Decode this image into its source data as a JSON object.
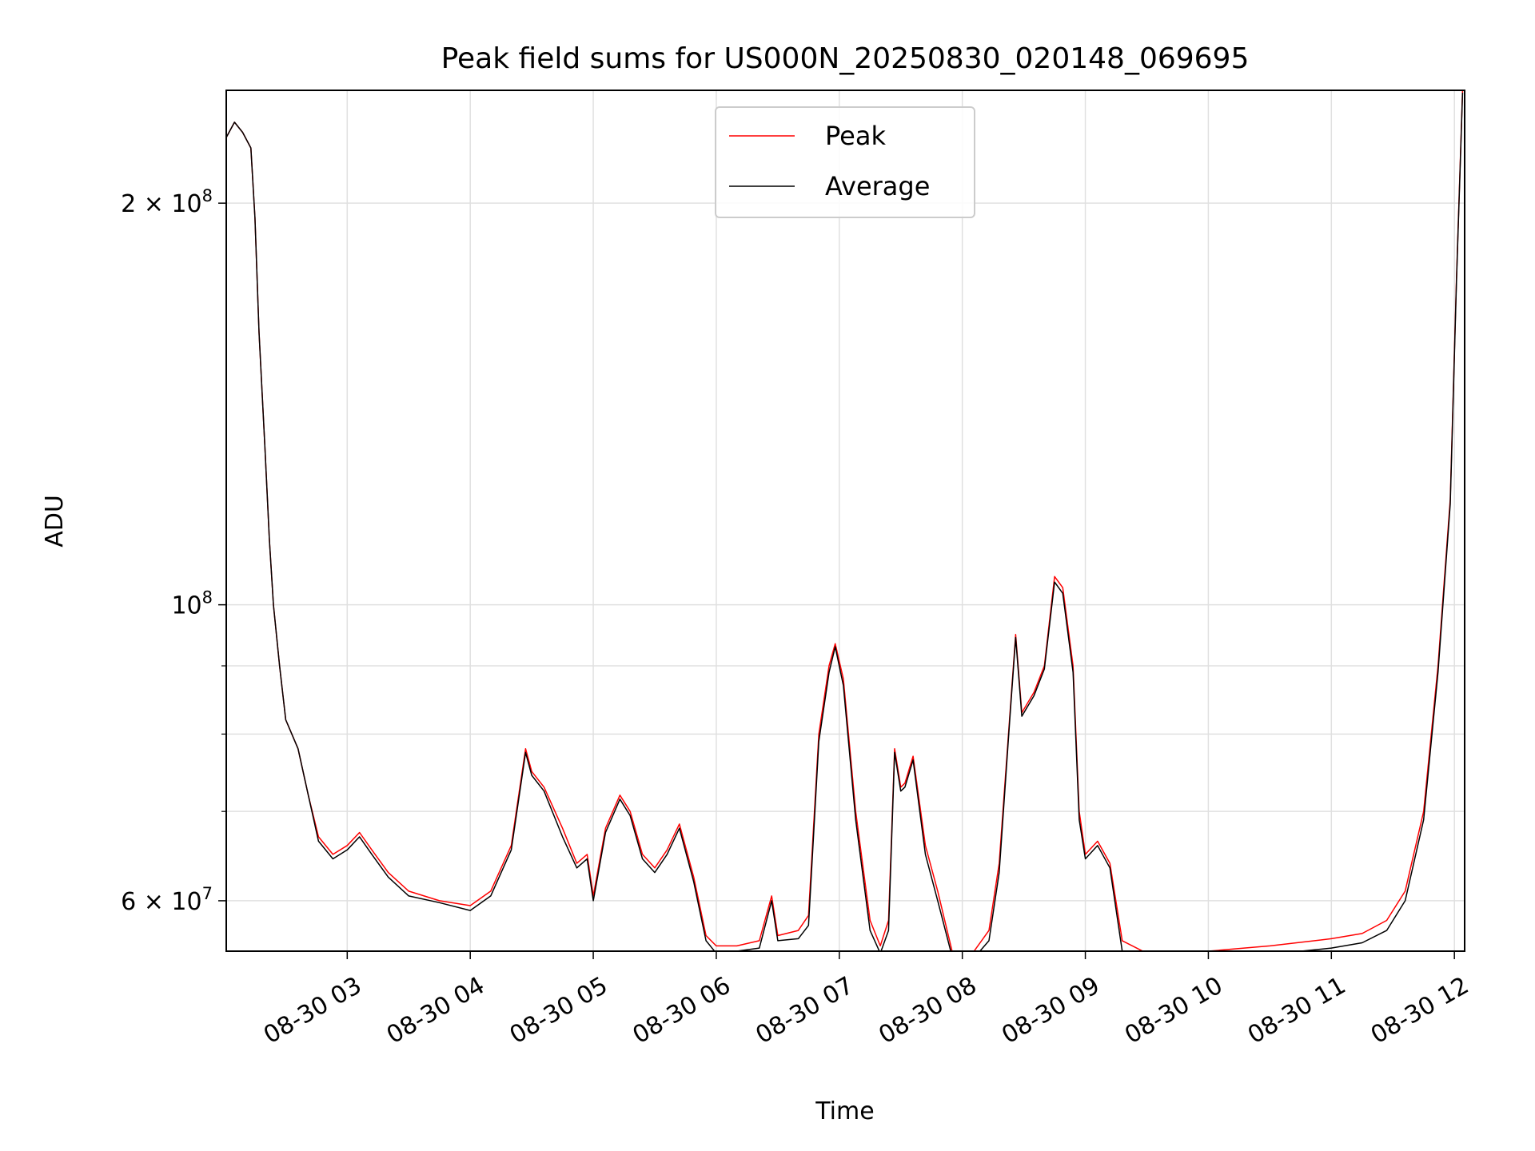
{
  "chart_data": {
    "type": "line",
    "title": "Peak field sums for US000N_20250830_020148_069695",
    "xlabel": "Time",
    "ylabel": "ADU",
    "yscale": "log",
    "grid": true,
    "legend_position": "top-center",
    "xlim": [
      "2025-08-30 02:01",
      "2025-08-30 12:05"
    ],
    "ylim": [
      55000000,
      243000000
    ],
    "x_ticks": [
      {
        "value": "2025-08-30 03:00",
        "label": "08-30 03"
      },
      {
        "value": "2025-08-30 04:00",
        "label": "08-30 04"
      },
      {
        "value": "2025-08-30 05:00",
        "label": "08-30 05"
      },
      {
        "value": "2025-08-30 06:00",
        "label": "08-30 06"
      },
      {
        "value": "2025-08-30 07:00",
        "label": "08-30 07"
      },
      {
        "value": "2025-08-30 08:00",
        "label": "08-30 08"
      },
      {
        "value": "2025-08-30 09:00",
        "label": "08-30 09"
      },
      {
        "value": "2025-08-30 10:00",
        "label": "08-30 10"
      },
      {
        "value": "2025-08-30 11:00",
        "label": "08-30 11"
      },
      {
        "value": "2025-08-30 12:00",
        "label": "08-30 12"
      }
    ],
    "y_ticks": [
      {
        "value": 60000000,
        "label": "6 × 10⁷",
        "base": "6 × 10",
        "exp": "7"
      },
      {
        "value": 100000000,
        "label": "10⁸",
        "base": "10",
        "exp": "8"
      },
      {
        "value": 200000000,
        "label": "2 × 10⁸",
        "base": "2 × 10",
        "exp": "8"
      }
    ],
    "y_minor_ticks": [
      70000000,
      80000000,
      90000000
    ],
    "series": [
      {
        "name": "Peak",
        "color": "#ff0000",
        "x": [
          "2025-08-30 02:01",
          "2025-08-30 02:05",
          "2025-08-30 02:09",
          "2025-08-30 02:13",
          "2025-08-30 02:15",
          "2025-08-30 02:17",
          "2025-08-30 02:20",
          "2025-08-30 02:22",
          "2025-08-30 02:24",
          "2025-08-30 02:27",
          "2025-08-30 02:30",
          "2025-08-30 02:36",
          "2025-08-30 02:41",
          "2025-08-30 02:46",
          "2025-08-30 02:53",
          "2025-08-30 03:00",
          "2025-08-30 03:06",
          "2025-08-30 03:12",
          "2025-08-30 03:20",
          "2025-08-30 03:30",
          "2025-08-30 03:45",
          "2025-08-30 04:00",
          "2025-08-30 04:10",
          "2025-08-30 04:20",
          "2025-08-30 04:27",
          "2025-08-30 04:30",
          "2025-08-30 04:36",
          "2025-08-30 04:45",
          "2025-08-30 04:52",
          "2025-08-30 04:57",
          "2025-08-30 05:00",
          "2025-08-30 05:06",
          "2025-08-30 05:13",
          "2025-08-30 05:18",
          "2025-08-30 05:24",
          "2025-08-30 05:30",
          "2025-08-30 05:36",
          "2025-08-30 05:42",
          "2025-08-30 05:49",
          "2025-08-30 05:55",
          "2025-08-30 06:00",
          "2025-08-30 06:10",
          "2025-08-30 06:21",
          "2025-08-30 06:27",
          "2025-08-30 06:30",
          "2025-08-30 06:40",
          "2025-08-30 06:45",
          "2025-08-30 06:50",
          "2025-08-30 06:55",
          "2025-08-30 06:58",
          "2025-08-30 07:02",
          "2025-08-30 07:08",
          "2025-08-30 07:15",
          "2025-08-30 07:20",
          "2025-08-30 07:24",
          "2025-08-30 07:27",
          "2025-08-30 07:30",
          "2025-08-30 07:32",
          "2025-08-30 07:36",
          "2025-08-30 07:42",
          "2025-08-30 07:48",
          "2025-08-30 07:55",
          "2025-08-30 08:05",
          "2025-08-30 08:13",
          "2025-08-30 08:18",
          "2025-08-30 08:23",
          "2025-08-30 08:26",
          "2025-08-30 08:29",
          "2025-08-30 08:35",
          "2025-08-30 08:40",
          "2025-08-30 08:45",
          "2025-08-30 08:49",
          "2025-08-30 08:54",
          "2025-08-30 08:57",
          "2025-08-30 09:00",
          "2025-08-30 09:06",
          "2025-08-30 09:12",
          "2025-08-30 09:18",
          "2025-08-30 09:30",
          "2025-08-30 10:00",
          "2025-08-30 10:30",
          "2025-08-30 11:00",
          "2025-08-30 11:15",
          "2025-08-30 11:27",
          "2025-08-30 11:36",
          "2025-08-30 11:45",
          "2025-08-30 11:52",
          "2025-08-30 11:58",
          "2025-08-30 12:01",
          "2025-08-30 12:04"
        ],
        "values": [
          224000000,
          230000000,
          226000000,
          220000000,
          195000000,
          160000000,
          130000000,
          112000000,
          100000000,
          90000000,
          82000000,
          78000000,
          72000000,
          67000000,
          65000000,
          66000000,
          67500000,
          65500000,
          63000000,
          61000000,
          60000000,
          59500000,
          61000000,
          66000000,
          78000000,
          75000000,
          73000000,
          68000000,
          64000000,
          65000000,
          60500000,
          68000000,
          72000000,
          70000000,
          65000000,
          63500000,
          65500000,
          68500000,
          62500000,
          56500000,
          55500000,
          55500000,
          56000000,
          60500000,
          56500000,
          57000000,
          58500000,
          80000000,
          90000000,
          93500000,
          88000000,
          70000000,
          58000000,
          55500000,
          58000000,
          78000000,
          73000000,
          73500000,
          77000000,
          66000000,
          61000000,
          55000000,
          54800000,
          57000000,
          64000000,
          82000000,
          95000000,
          83000000,
          86000000,
          90000000,
          105000000,
          103000000,
          90000000,
          70000000,
          65000000,
          66500000,
          64000000,
          56000000,
          54800000,
          55000000,
          55500000,
          56200000,
          56700000,
          58000000,
          61000000,
          70000000,
          90000000,
          120000000,
          175000000,
          243000000
        ]
      },
      {
        "name": "Average",
        "color": "#000000",
        "x": [
          "2025-08-30 02:01",
          "2025-08-30 02:05",
          "2025-08-30 02:09",
          "2025-08-30 02:13",
          "2025-08-30 02:15",
          "2025-08-30 02:17",
          "2025-08-30 02:20",
          "2025-08-30 02:22",
          "2025-08-30 02:24",
          "2025-08-30 02:27",
          "2025-08-30 02:30",
          "2025-08-30 02:36",
          "2025-08-30 02:41",
          "2025-08-30 02:46",
          "2025-08-30 02:53",
          "2025-08-30 03:00",
          "2025-08-30 03:06",
          "2025-08-30 03:12",
          "2025-08-30 03:20",
          "2025-08-30 03:30",
          "2025-08-30 03:45",
          "2025-08-30 04:00",
          "2025-08-30 04:10",
          "2025-08-30 04:20",
          "2025-08-30 04:27",
          "2025-08-30 04:30",
          "2025-08-30 04:36",
          "2025-08-30 04:45",
          "2025-08-30 04:52",
          "2025-08-30 04:57",
          "2025-08-30 05:00",
          "2025-08-30 05:06",
          "2025-08-30 05:13",
          "2025-08-30 05:18",
          "2025-08-30 05:24",
          "2025-08-30 05:30",
          "2025-08-30 05:36",
          "2025-08-30 05:42",
          "2025-08-30 05:49",
          "2025-08-30 05:55",
          "2025-08-30 06:00",
          "2025-08-30 06:10",
          "2025-08-30 06:21",
          "2025-08-30 06:27",
          "2025-08-30 06:30",
          "2025-08-30 06:40",
          "2025-08-30 06:45",
          "2025-08-30 06:50",
          "2025-08-30 06:55",
          "2025-08-30 06:58",
          "2025-08-30 07:02",
          "2025-08-30 07:08",
          "2025-08-30 07:15",
          "2025-08-30 07:20",
          "2025-08-30 07:24",
          "2025-08-30 07:27",
          "2025-08-30 07:30",
          "2025-08-30 07:32",
          "2025-08-30 07:36",
          "2025-08-30 07:42",
          "2025-08-30 07:48",
          "2025-08-30 07:55",
          "2025-08-30 08:05",
          "2025-08-30 08:13",
          "2025-08-30 08:18",
          "2025-08-30 08:23",
          "2025-08-30 08:26",
          "2025-08-30 08:29",
          "2025-08-30 08:35",
          "2025-08-30 08:40",
          "2025-08-30 08:45",
          "2025-08-30 08:49",
          "2025-08-30 08:54",
          "2025-08-30 08:57",
          "2025-08-30 09:00",
          "2025-08-30 09:06",
          "2025-08-30 09:12",
          "2025-08-30 09:18",
          "2025-08-30 09:30",
          "2025-08-30 10:00",
          "2025-08-30 10:30",
          "2025-08-30 11:00",
          "2025-08-30 11:15",
          "2025-08-30 11:27",
          "2025-08-30 11:36",
          "2025-08-30 11:45",
          "2025-08-30 11:52",
          "2025-08-30 11:58",
          "2025-08-30 12:01",
          "2025-08-30 12:04"
        ],
        "values": [
          224000000,
          230000000,
          226000000,
          220000000,
          195000000,
          160000000,
          130000000,
          112000000,
          100000000,
          90000000,
          82000000,
          78000000,
          72000000,
          66500000,
          64500000,
          65500000,
          67000000,
          65000000,
          62500000,
          60500000,
          59800000,
          59000000,
          60500000,
          65500000,
          77500000,
          74500000,
          72500000,
          67000000,
          63500000,
          64500000,
          60000000,
          67500000,
          71500000,
          69500000,
          64500000,
          63000000,
          65000000,
          68000000,
          62000000,
          56000000,
          54800000,
          55000000,
          55300000,
          60000000,
          56000000,
          56200000,
          57500000,
          79000000,
          89000000,
          93000000,
          87000000,
          69000000,
          57000000,
          54800000,
          57000000,
          77500000,
          72500000,
          73000000,
          76500000,
          65000000,
          60000000,
          54500000,
          54200000,
          56000000,
          63000000,
          81500000,
          94500000,
          82500000,
          85500000,
          89500000,
          104000000,
          102000000,
          89000000,
          69000000,
          64500000,
          66000000,
          63500000,
          55000000,
          54200000,
          54300000,
          54700000,
          55300000,
          55800000,
          57000000,
          60000000,
          69000000,
          89000000,
          119000000,
          174000000,
          242000000
        ]
      }
    ]
  }
}
